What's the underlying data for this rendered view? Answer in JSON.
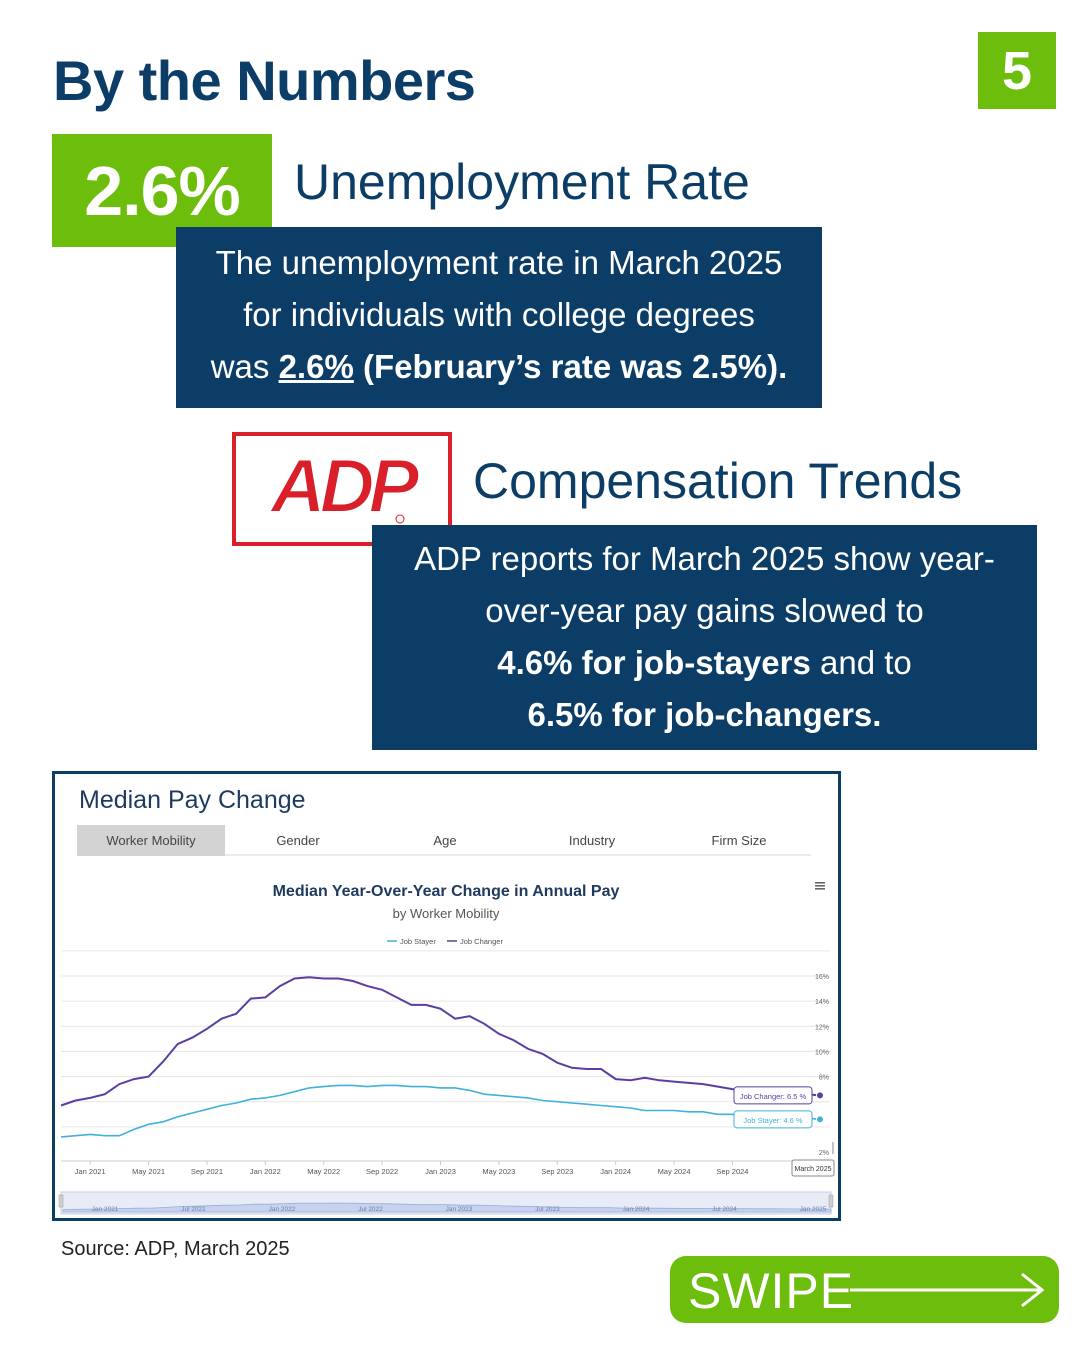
{
  "header": {
    "title": "By the Numbers",
    "page_number": "5"
  },
  "unemployment": {
    "stat": "2.6%",
    "label": "Unemployment Rate",
    "text_1": "The unemployment rate in March 2025",
    "text_2": "for individuals with college degrees",
    "text_3_prefix": "was ",
    "text_3_value": "2.6%",
    "text_3_suffix": " (February’s rate was 2.5%)."
  },
  "compensation": {
    "logo_text": "ADP",
    "label": "Compensation Trends",
    "line_1": "ADP reports for March 2025 show year-",
    "line_2": "over-year pay gains slowed to",
    "line_3_bold": "4.6% for job-stayers",
    "line_3_rest": " and to",
    "line_4_bold": "6.5% for job-changers."
  },
  "chart_panel": {
    "panel_title": "Median Pay Change",
    "tabs": [
      "Worker Mobility",
      "Gender",
      "Age",
      "Industry",
      "Firm Size"
    ],
    "menu_icon": "hamburger-menu-icon",
    "tooltip_date": "March 2025"
  },
  "chart_data": {
    "type": "line",
    "title": "Median Year-Over-Year Change in Annual Pay",
    "subtitle": "by Worker Mobility",
    "legend_position": "top-center",
    "ylim": [
      2,
      16
    ],
    "y_ticks": [
      "2%",
      "8%",
      "10%",
      "12%",
      "14%",
      "16%"
    ],
    "x_ticks": [
      "Jan 2021",
      "May 2021",
      "Sep 2021",
      "Jan 2022",
      "May 2022",
      "Sep 2022",
      "Jan 2023",
      "May 2023",
      "Sep 2023",
      "Jan 2024",
      "May 2024",
      "Sep 2024"
    ],
    "navigator_ticks": [
      "Jan 2021",
      "Jul 2021",
      "Jan 2022",
      "Jul 2022",
      "Jan 2023",
      "Jul 2023",
      "Jan 2024",
      "Jul 2024",
      "Jan 2025"
    ],
    "grid": true,
    "x": [
      "2020-11",
      "2020-12",
      "2021-01",
      "2021-02",
      "2021-03",
      "2021-04",
      "2021-05",
      "2021-06",
      "2021-07",
      "2021-08",
      "2021-09",
      "2021-10",
      "2021-11",
      "2021-12",
      "2022-01",
      "2022-02",
      "2022-03",
      "2022-04",
      "2022-05",
      "2022-06",
      "2022-07",
      "2022-08",
      "2022-09",
      "2022-10",
      "2022-11",
      "2022-12",
      "2023-01",
      "2023-02",
      "2023-03",
      "2023-04",
      "2023-05",
      "2023-06",
      "2023-07",
      "2023-08",
      "2023-09",
      "2023-10",
      "2023-11",
      "2023-12",
      "2024-01",
      "2024-02",
      "2024-03",
      "2024-04",
      "2024-05",
      "2024-06",
      "2024-07",
      "2024-08",
      "2024-09",
      "2024-10",
      "2024-11",
      "2024-12",
      "2025-01",
      "2025-02",
      "2025-03"
    ],
    "series": [
      {
        "name": "Job Stayer",
        "color": "#3fb1dc",
        "end_label": "4.6 %",
        "values": [
          3.2,
          3.3,
          3.4,
          3.3,
          3.3,
          3.8,
          4.2,
          4.4,
          4.8,
          5.1,
          5.4,
          5.7,
          5.9,
          6.2,
          6.3,
          6.5,
          6.8,
          7.1,
          7.2,
          7.3,
          7.3,
          7.2,
          7.3,
          7.3,
          7.2,
          7.2,
          7.1,
          7.1,
          6.9,
          6.6,
          6.5,
          6.4,
          6.3,
          6.1,
          6.0,
          5.9,
          5.8,
          5.7,
          5.6,
          5.5,
          5.3,
          5.3,
          5.3,
          5.2,
          5.2,
          5.0,
          5.0,
          4.9,
          4.9,
          4.8,
          4.8,
          4.7,
          4.6
        ]
      },
      {
        "name": "Job Changer",
        "color": "#5b3ea1",
        "end_label": "6.5 %",
        "values": [
          5.7,
          6.1,
          6.3,
          6.6,
          7.4,
          7.8,
          8.0,
          9.2,
          10.6,
          11.1,
          11.8,
          12.6,
          13.0,
          14.2,
          14.3,
          15.2,
          15.8,
          15.9,
          15.8,
          15.8,
          15.6,
          15.2,
          14.9,
          14.3,
          13.7,
          13.7,
          13.4,
          12.6,
          12.8,
          12.2,
          11.4,
          10.9,
          10.2,
          9.8,
          9.1,
          8.7,
          8.6,
          8.6,
          7.8,
          7.7,
          7.9,
          7.7,
          7.6,
          7.5,
          7.4,
          7.2,
          7.0,
          6.9,
          6.9,
          6.7,
          6.6,
          6.6,
          6.5
        ]
      }
    ]
  },
  "footer": {
    "source": "Source: ADP, March 2025",
    "swipe": "SWIPE"
  }
}
